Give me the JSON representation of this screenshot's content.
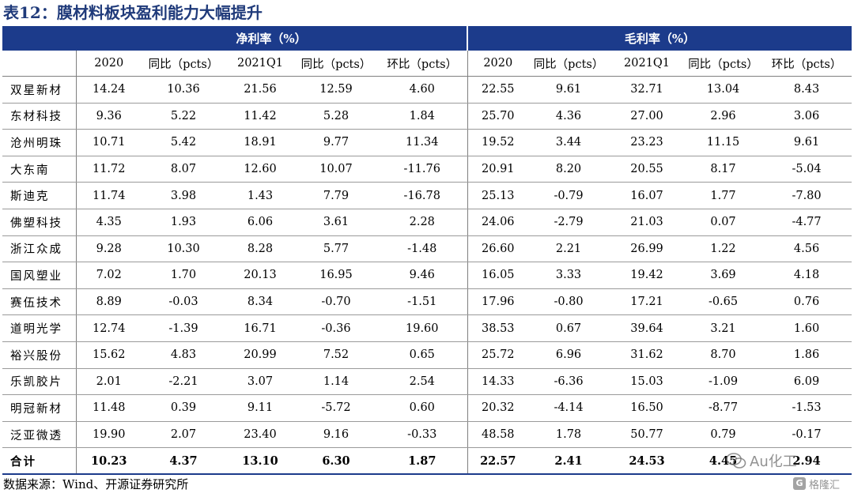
{
  "title": "表12：膜材料板块盈利能力大幅提升",
  "header": {
    "group_net": "净利率（%）",
    "group_gross": "毛利率（%）",
    "columns": [
      "2020",
      "同比（pcts）",
      "2021Q1",
      "同比（pcts）",
      "环比（pcts）",
      "2020",
      "同比（pcts）",
      "2021Q1",
      "同比（pcts）",
      "环比（pcts）"
    ]
  },
  "rows": [
    {
      "name": "双星新材",
      "values": [
        "14.24",
        "10.36",
        "21.56",
        "12.59",
        "4.60",
        "22.55",
        "9.61",
        "32.71",
        "13.04",
        "8.43"
      ]
    },
    {
      "name": "东材科技",
      "values": [
        "9.36",
        "5.22",
        "11.42",
        "5.28",
        "1.84",
        "25.70",
        "4.36",
        "27.00",
        "2.96",
        "3.06"
      ]
    },
    {
      "name": "沧州明珠",
      "values": [
        "10.71",
        "5.42",
        "18.91",
        "9.77",
        "11.34",
        "19.52",
        "3.44",
        "23.23",
        "11.15",
        "9.61"
      ]
    },
    {
      "name": "大东南",
      "values": [
        "11.72",
        "8.07",
        "12.60",
        "10.07",
        "-11.76",
        "20.91",
        "8.20",
        "20.55",
        "8.17",
        "-5.04"
      ]
    },
    {
      "name": "斯迪克",
      "values": [
        "11.74",
        "3.98",
        "1.43",
        "7.79",
        "-16.78",
        "25.13",
        "-0.79",
        "16.07",
        "1.77",
        "-7.80"
      ]
    },
    {
      "name": "佛塑科技",
      "values": [
        "4.35",
        "1.93",
        "6.06",
        "3.61",
        "2.28",
        "24.06",
        "-2.79",
        "21.03",
        "0.07",
        "-4.77"
      ]
    },
    {
      "name": "浙江众成",
      "values": [
        "9.28",
        "10.30",
        "8.28",
        "5.77",
        "-1.48",
        "26.60",
        "2.21",
        "26.99",
        "1.22",
        "4.56"
      ]
    },
    {
      "name": "国风塑业",
      "values": [
        "7.02",
        "1.70",
        "20.13",
        "16.95",
        "9.46",
        "16.05",
        "3.33",
        "19.42",
        "3.69",
        "4.18"
      ]
    },
    {
      "name": "赛伍技术",
      "values": [
        "8.89",
        "-0.03",
        "8.34",
        "-0.70",
        "-1.51",
        "17.96",
        "-0.80",
        "17.21",
        "-0.65",
        "0.76"
      ]
    },
    {
      "name": "道明光学",
      "values": [
        "12.74",
        "-1.39",
        "16.71",
        "-0.36",
        "19.60",
        "38.53",
        "0.67",
        "39.64",
        "3.21",
        "1.60"
      ]
    },
    {
      "name": "裕兴股份",
      "values": [
        "15.62",
        "4.83",
        "20.99",
        "7.52",
        "0.65",
        "25.72",
        "6.96",
        "31.62",
        "8.70",
        "1.86"
      ]
    },
    {
      "name": "乐凯胶片",
      "values": [
        "2.01",
        "-2.21",
        "3.07",
        "1.14",
        "2.54",
        "14.33",
        "-6.36",
        "15.03",
        "-1.09",
        "6.09"
      ]
    },
    {
      "name": "明冠新材",
      "values": [
        "11.48",
        "0.39",
        "9.11",
        "-5.72",
        "0.60",
        "20.32",
        "-4.14",
        "16.50",
        "-8.77",
        "-1.53"
      ]
    },
    {
      "name": "泛亚微透",
      "values": [
        "19.90",
        "2.07",
        "23.40",
        "9.16",
        "-0.33",
        "48.58",
        "1.78",
        "50.77",
        "0.79",
        "-0.17"
      ]
    }
  ],
  "total": {
    "name": "合计",
    "values": [
      "10.23",
      "4.37",
      "13.10",
      "6.30",
      "1.87",
      "22.57",
      "2.41",
      "24.53",
      "4.45",
      "2.94"
    ]
  },
  "source": "数据来源：Wind、开源证券研究所",
  "watermark": {
    "main": "Au化工",
    "icon": "wechat-icon",
    "secondary_logo": "G",
    "secondary": "格隆汇"
  }
}
